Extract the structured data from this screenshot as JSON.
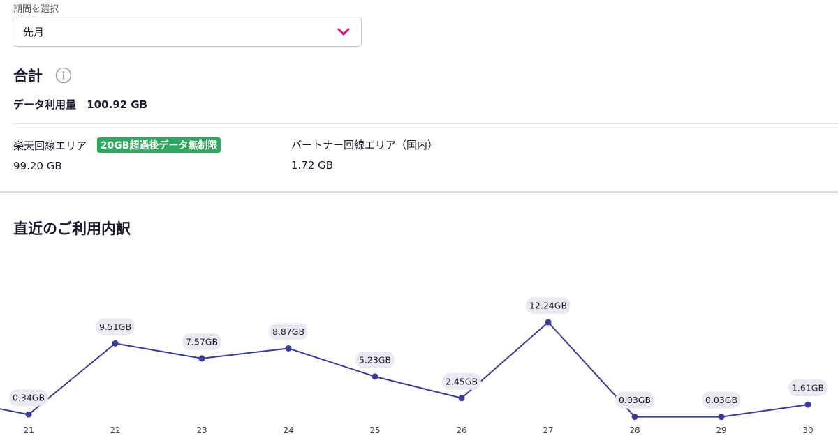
{
  "period": {
    "label": "期間を選択",
    "selected": "先月"
  },
  "total": {
    "title": "合計",
    "data_usage_label": "データ利用量",
    "data_usage_value": "100.92 GB"
  },
  "areas": {
    "rakuten": {
      "name": "楽天回線エリア",
      "badge": "20GB超過後データ無制限",
      "amount": "99.20 GB"
    },
    "partner": {
      "name": "パートナー回線エリア（国内）",
      "amount": "1.72 GB"
    }
  },
  "recent": {
    "title": "直近のご利用内訳"
  },
  "colors": {
    "accent": "#e6007e",
    "line": "#3b3b9a",
    "badge_green": "#2eaa5e",
    "label_bg": "#e9e9f2"
  },
  "chart_data": {
    "type": "line",
    "categories": [
      "21",
      "22",
      "23",
      "24",
      "25",
      "26",
      "27",
      "28",
      "29",
      "30"
    ],
    "values": [
      0.34,
      9.51,
      7.57,
      8.87,
      5.23,
      2.45,
      12.24,
      0.03,
      0.03,
      1.61
    ],
    "data_labels": [
      "0.34GB",
      "9.51GB",
      "7.57GB",
      "8.87GB",
      "5.23GB",
      "2.45GB",
      "12.24GB",
      "0.03GB",
      "0.03GB",
      "1.61GB"
    ],
    "unit": "GB",
    "ylim": [
      0,
      12.24
    ],
    "grid": false,
    "legend": "none"
  }
}
